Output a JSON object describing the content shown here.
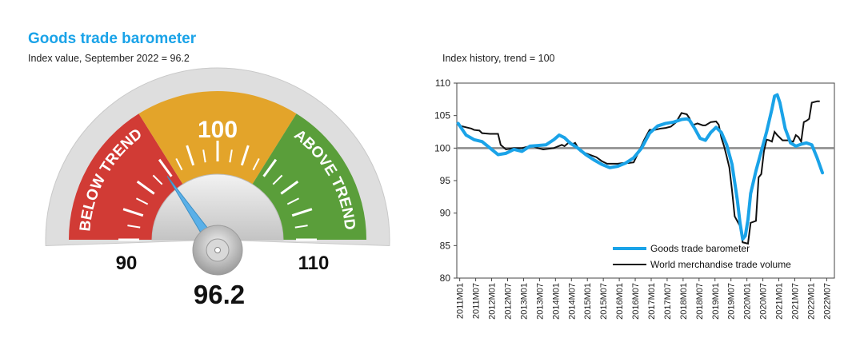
{
  "title": "Goods trade barometer",
  "subtitle": "Index value, September 2022 = 96.2",
  "gauge": {
    "min_label": "90",
    "mid_label": "100",
    "max_label": "110",
    "below_label": "BELOW TREND",
    "above_label": "ABOVE TREND",
    "value": 96.2,
    "value_label": "96.2",
    "min": 90,
    "max": 110,
    "colors": {
      "below": "#d13b35",
      "mid": "#e3a42a",
      "above": "#5a9e3a",
      "needle": "#5ab0e8"
    }
  },
  "chart_data": {
    "type": "line",
    "title": "Index history, trend = 100",
    "ylim": [
      80,
      110
    ],
    "yticks": [
      "80",
      "85",
      "90",
      "95",
      "100",
      "105",
      "110"
    ],
    "xticks": [
      "2011M01",
      "2011M07",
      "2012M01",
      "2012M07",
      "2013M01",
      "2013M07",
      "2014M01",
      "2014M07",
      "2015M01",
      "2015M07",
      "2016M01",
      "2016M07",
      "2017M01",
      "2017M07",
      "2018M01",
      "2018M07",
      "2019M01",
      "2019M07",
      "2020M01",
      "2020M07",
      "2021M01",
      "2021M07",
      "2022M01",
      "2022M07"
    ],
    "trend_line": 100,
    "series": [
      {
        "name": "Goods trade barometer",
        "color": "#1aa3e8",
        "points": [
          [
            0,
            103.8
          ],
          [
            3,
            102.0
          ],
          [
            6,
            101.3
          ],
          [
            9,
            101.0
          ],
          [
            12,
            100.0
          ],
          [
            15,
            99.0
          ],
          [
            18,
            99.2
          ],
          [
            21,
            99.8
          ],
          [
            24,
            99.5
          ],
          [
            27,
            100.3
          ],
          [
            30,
            100.4
          ],
          [
            33,
            100.5
          ],
          [
            36,
            101.3
          ],
          [
            38,
            102.0
          ],
          [
            40,
            101.6
          ],
          [
            42,
            100.8
          ],
          [
            45,
            100.0
          ],
          [
            48,
            99.0
          ],
          [
            51,
            98.2
          ],
          [
            54,
            97.5
          ],
          [
            57,
            97.0
          ],
          [
            60,
            97.2
          ],
          [
            63,
            97.7
          ],
          [
            66,
            98.5
          ],
          [
            69,
            100.0
          ],
          [
            72,
            102.3
          ],
          [
            75,
            103.4
          ],
          [
            78,
            103.8
          ],
          [
            81,
            104.0
          ],
          [
            84,
            104.4
          ],
          [
            86,
            104.5
          ],
          [
            87,
            104.3
          ],
          [
            89,
            103.0
          ],
          [
            91,
            101.5
          ],
          [
            93,
            101.2
          ],
          [
            95,
            102.4
          ],
          [
            97,
            103.2
          ],
          [
            99,
            102.4
          ],
          [
            101,
            100.5
          ],
          [
            103,
            97.5
          ],
          [
            105,
            92.0
          ],
          [
            106,
            88.5
          ],
          [
            107,
            86.0
          ],
          [
            108,
            86.5
          ],
          [
            109,
            89.0
          ],
          [
            110,
            93.0
          ],
          [
            112,
            96.5
          ],
          [
            114,
            99.5
          ],
          [
            116,
            102.5
          ],
          [
            118,
            106.0
          ],
          [
            119,
            108.0
          ],
          [
            120,
            108.2
          ],
          [
            121,
            107.0
          ],
          [
            123,
            103.0
          ],
          [
            125,
            100.8
          ],
          [
            127,
            100.3
          ],
          [
            129,
            100.6
          ],
          [
            131,
            100.8
          ],
          [
            133,
            100.5
          ],
          [
            135,
            98.5
          ],
          [
            137,
            96.2
          ]
        ]
      },
      {
        "name": "World merchandise trade volume",
        "color": "#111111",
        "points": [
          [
            0,
            103.5
          ],
          [
            3,
            103.2
          ],
          [
            5,
            103.0
          ],
          [
            6,
            102.8
          ],
          [
            8,
            102.7
          ],
          [
            9,
            102.3
          ],
          [
            12,
            102.2
          ],
          [
            15,
            102.2
          ],
          [
            16,
            100.5
          ],
          [
            18,
            99.8
          ],
          [
            21,
            100.0
          ],
          [
            24,
            100.0
          ],
          [
            26,
            100.2
          ],
          [
            28,
            100.3
          ],
          [
            30,
            100.0
          ],
          [
            32,
            99.8
          ],
          [
            36,
            100.0
          ],
          [
            39,
            100.5
          ],
          [
            40,
            100.3
          ],
          [
            42,
            101.0
          ],
          [
            43,
            100.6
          ],
          [
            44,
            100.8
          ],
          [
            45,
            100.1
          ],
          [
            46,
            99.5
          ],
          [
            48,
            99.2
          ],
          [
            50,
            98.9
          ],
          [
            52,
            98.6
          ],
          [
            54,
            98.0
          ],
          [
            56,
            97.6
          ],
          [
            58,
            97.6
          ],
          [
            60,
            97.6
          ],
          [
            62,
            97.7
          ],
          [
            64,
            97.7
          ],
          [
            66,
            97.8
          ],
          [
            68,
            99.5
          ],
          [
            70,
            101.3
          ],
          [
            72,
            102.8
          ],
          [
            74,
            102.8
          ],
          [
            76,
            103.0
          ],
          [
            78,
            103.1
          ],
          [
            80,
            103.3
          ],
          [
            82,
            104.0
          ],
          [
            84,
            105.4
          ],
          [
            86,
            105.2
          ],
          [
            87,
            104.6
          ],
          [
            88,
            103.5
          ],
          [
            90,
            103.8
          ],
          [
            92,
            103.5
          ],
          [
            93,
            103.5
          ],
          [
            95,
            104.0
          ],
          [
            97,
            104.1
          ],
          [
            98,
            103.6
          ],
          [
            99,
            101.6
          ],
          [
            100,
            100.3
          ],
          [
            101,
            98.7
          ],
          [
            102,
            97.0
          ],
          [
            103,
            93.5
          ],
          [
            104,
            89.5
          ],
          [
            106,
            88.0
          ],
          [
            107,
            85.5
          ],
          [
            109,
            85.3
          ],
          [
            110,
            88.5
          ],
          [
            112,
            88.8
          ],
          [
            113,
            95.5
          ],
          [
            114,
            96.0
          ],
          [
            115,
            99.5
          ],
          [
            116,
            101.3
          ],
          [
            117,
            101.2
          ],
          [
            118,
            101.0
          ],
          [
            119,
            102.5
          ],
          [
            120,
            102.0
          ],
          [
            122,
            101.2
          ],
          [
            124,
            101.2
          ],
          [
            126,
            101.0
          ],
          [
            127,
            102.0
          ],
          [
            128,
            101.7
          ],
          [
            129,
            101.0
          ],
          [
            130,
            104.0
          ],
          [
            131,
            104.2
          ],
          [
            132,
            104.5
          ],
          [
            133,
            107.0
          ],
          [
            135,
            107.2
          ],
          [
            136,
            107.2
          ]
        ]
      }
    ],
    "legend_position": "bottom-right"
  }
}
